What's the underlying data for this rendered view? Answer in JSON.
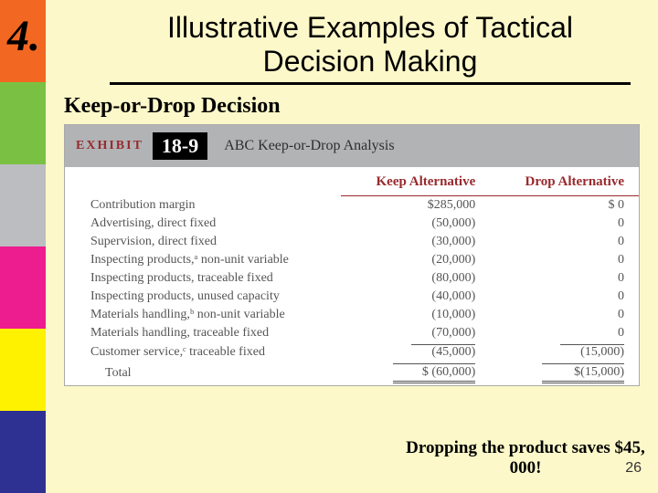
{
  "slide": {
    "background_color": "#fdf8c9",
    "number": "4.",
    "number_color": "#000000",
    "title": "Illustrative Examples of Tactical Decision Making",
    "subtitle": "Keep-or-Drop Decision",
    "callout": "Dropping the product saves $45, 000!",
    "page_number": "26"
  },
  "sidebar": {
    "colors": [
      "#f26721",
      "#7ac143",
      "#bcbdc0",
      "#ed1c8f",
      "#fff200",
      "#2e3192"
    ]
  },
  "exhibit": {
    "label": "EXHIBIT",
    "number": "18-9",
    "caption": "ABC Keep-or-Drop Analysis",
    "header_bg": "#b1b3b5",
    "accent_color": "#982a2e"
  },
  "table": {
    "columns": [
      "",
      "Keep Alternative",
      "Drop Alternative"
    ],
    "rows": [
      {
        "label": "Contribution margin",
        "keep": "$285,000",
        "drop": "$        0"
      },
      {
        "label": "Advertising, direct fixed",
        "keep": "(50,000)",
        "drop": "0"
      },
      {
        "label": "Supervision, direct fixed",
        "keep": "(30,000)",
        "drop": "0"
      },
      {
        "label": "Inspecting products,ᵃ non-unit variable",
        "keep": "(20,000)",
        "drop": "0"
      },
      {
        "label": "Inspecting products, traceable fixed",
        "keep": "(80,000)",
        "drop": "0"
      },
      {
        "label": "Inspecting products, unused capacity",
        "keep": "(40,000)",
        "drop": "0"
      },
      {
        "label": "Materials handling,ᵇ non-unit variable",
        "keep": "(10,000)",
        "drop": "0"
      },
      {
        "label": "Materials handling, traceable fixed",
        "keep": "(70,000)",
        "drop": "0"
      },
      {
        "label": "Customer service,ᶜ traceable fixed",
        "keep": "(45,000)",
        "drop": "(15,000)",
        "subtotal": true
      }
    ],
    "total": {
      "label": "Total",
      "keep": "$ (60,000)",
      "drop": "$(15,000)"
    }
  }
}
